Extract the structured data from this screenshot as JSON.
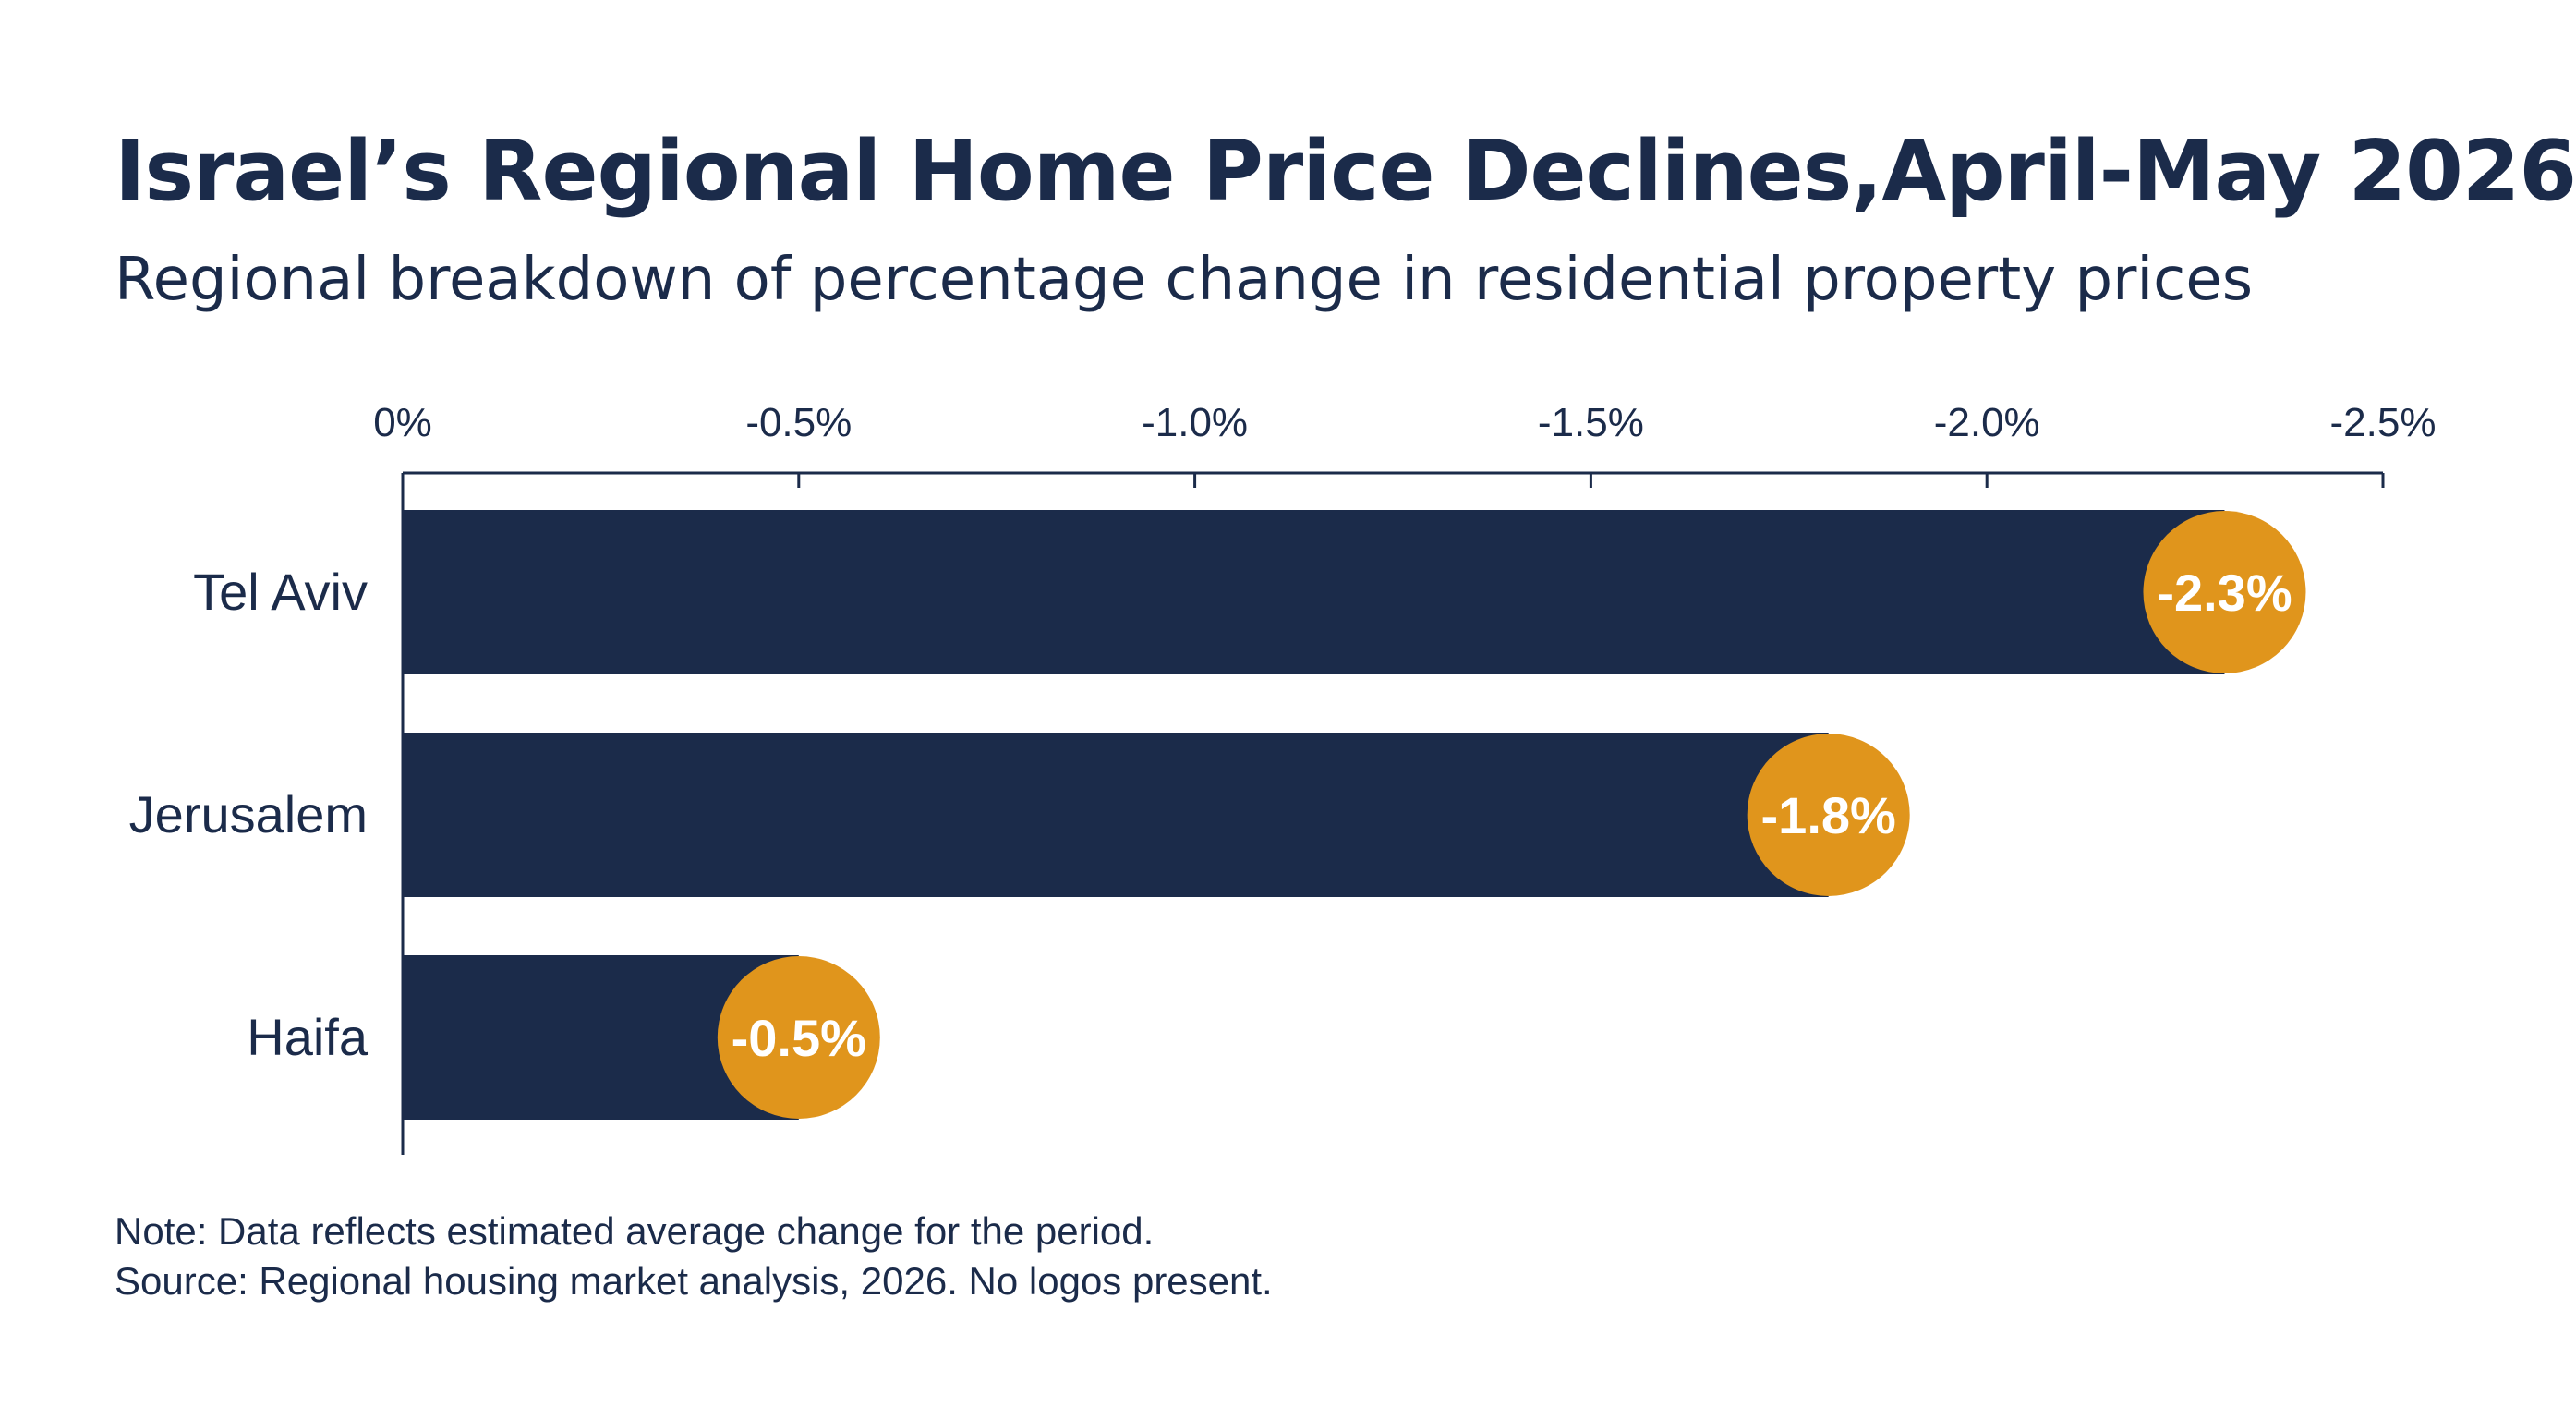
{
  "header": {
    "title": "Israel’s Regional Home Price Declines,April-May 2026",
    "subtitle": "Regional breakdown of percentage change in residential property prices"
  },
  "footer": {
    "note": "Note: Data reflects estimated average change for the period.",
    "source": "Source: Regional housing market analysis, 2026. No logos present."
  },
  "colors": {
    "bar": "#1b2b4a",
    "badge": "#e0951c",
    "badge_text": "#ffffff",
    "axis": "#1b2b4a",
    "text": "#1b2b4a"
  },
  "chart_data": {
    "type": "bar",
    "orientation": "horizontal",
    "title": "Israel’s Regional Home Price Declines,April-May 2026",
    "subtitle": "Regional breakdown of percentage change in residential property prices",
    "categories": [
      "Tel Aviv",
      "Jerusalem",
      "Haifa"
    ],
    "values": [
      -2.3,
      -1.8,
      -0.5
    ],
    "data_labels": [
      "-2.3%",
      "-1.8%",
      "-0.5%"
    ],
    "xlim": [
      0,
      -2.5
    ],
    "x_ticks": [
      0,
      -0.5,
      -1.0,
      -1.5,
      -2.0,
      -2.5
    ],
    "x_tick_labels": [
      "0%",
      "-0.5%",
      "-1.0%",
      "-1.5%",
      "-2.0%",
      "-2.5%"
    ],
    "axis_position": "top",
    "xlabel": "",
    "ylabel": "",
    "grid": false,
    "legend": "none"
  }
}
